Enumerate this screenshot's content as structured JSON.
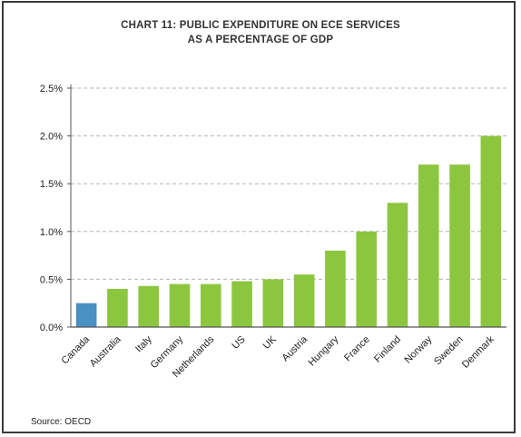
{
  "chart_data": {
    "type": "bar",
    "title_lines": [
      "CHART 11: PUBLIC EXPENDITURE ON ECE SERVICES",
      "AS A PERCENTAGE OF GDP"
    ],
    "categories": [
      "Canada",
      "Australia",
      "Italy",
      "Germany",
      "Netherlands",
      "US",
      "UK",
      "Austria",
      "Hungary",
      "France",
      "Finland",
      "Norway",
      "Sweden",
      "Denmark"
    ],
    "values": [
      0.25,
      0.4,
      0.43,
      0.45,
      0.45,
      0.48,
      0.5,
      0.55,
      0.8,
      1.0,
      1.3,
      1.7,
      1.7,
      2.0
    ],
    "highlight_category": "Canada",
    "ylim": [
      0,
      2.5
    ],
    "yticks": [
      0,
      0.5,
      1.0,
      1.5,
      2.0,
      2.5
    ],
    "ytick_labels": [
      "0.0%",
      "0.5%",
      "1.0%",
      "1.5%",
      "2.0%",
      "2.5%"
    ],
    "grid": "horizontal dashed",
    "xlabel": "",
    "ylabel": "",
    "colors": {
      "default_bar": "#8cc63f",
      "highlight_bar": "#4a90c2",
      "grid": "#b5b5b5",
      "axis": "#555555"
    }
  },
  "source": "Source: OECD"
}
